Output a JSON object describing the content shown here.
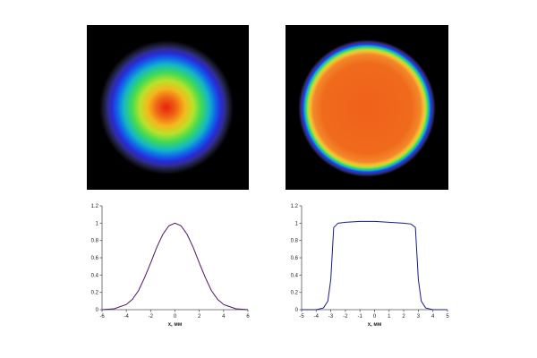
{
  "beam_images": {
    "left": {
      "description_name": "gaussian-beam-profile"
    },
    "right": {
      "description_name": "flat-top-beam-profile"
    }
  },
  "colors": {
    "profile_line": "#1a1a8c",
    "fit_line": "#c01818",
    "axis": "#555555"
  },
  "chart_data": [
    {
      "type": "line",
      "title": "",
      "xlabel": "x, мм",
      "ylabel": "",
      "xlim": [
        -6,
        6
      ],
      "ylim": [
        0,
        1.2
      ],
      "xticks": [
        "-6",
        "-4",
        "-2",
        "0",
        "2",
        "4",
        "6"
      ],
      "yticks": [
        "0",
        "0.2",
        "0.4",
        "0.6",
        "0.8",
        "1",
        "1.2"
      ],
      "series": [
        {
          "x": [
            -6,
            -5,
            -4,
            -3.5,
            -3,
            -2.5,
            -2,
            -1.5,
            -1,
            -0.5,
            0,
            0.5,
            1,
            1.5,
            2,
            2.5,
            3,
            3.5,
            4,
            5,
            6
          ],
          "y": [
            0,
            0.01,
            0.06,
            0.12,
            0.22,
            0.37,
            0.54,
            0.72,
            0.87,
            0.97,
            1.0,
            0.97,
            0.87,
            0.72,
            0.54,
            0.37,
            0.22,
            0.12,
            0.06,
            0.01,
            0
          ]
        },
        {
          "x": [
            -6,
            -5,
            -4,
            -3.5,
            -3,
            -2.5,
            -2,
            -1.5,
            -1,
            -0.5,
            0,
            0.5,
            1,
            1.5,
            2,
            2.5,
            3,
            3.5,
            4,
            5,
            6
          ],
          "y": [
            0,
            0.01,
            0.06,
            0.12,
            0.22,
            0.37,
            0.54,
            0.72,
            0.87,
            0.97,
            1.0,
            0.97,
            0.87,
            0.72,
            0.54,
            0.37,
            0.22,
            0.12,
            0.06,
            0.01,
            0
          ]
        }
      ]
    },
    {
      "type": "line",
      "title": "",
      "xlabel": "x, мм",
      "ylabel": "",
      "xlim": [
        -5,
        5
      ],
      "ylim": [
        0,
        1.2
      ],
      "xticks": [
        "-5",
        "-4",
        "-3",
        "-2",
        "-1",
        "0",
        "1",
        "2",
        "3",
        "4",
        "5"
      ],
      "yticks": [
        "0",
        "0.2",
        "0.4",
        "0.6",
        "0.8",
        "1",
        "1.2"
      ],
      "series": [
        {
          "x": [
            -5,
            -4,
            -3.5,
            -3.2,
            -3,
            -2.9,
            -2.8,
            -2.5,
            -2,
            -1,
            0,
            1,
            2,
            2.5,
            2.8,
            2.9,
            3,
            3.2,
            3.5,
            4,
            5
          ],
          "y": [
            0,
            0.0,
            0.02,
            0.1,
            0.35,
            0.65,
            0.95,
            1.0,
            1.01,
            1.02,
            1.02,
            1.01,
            1.0,
            0.99,
            0.95,
            0.65,
            0.35,
            0.1,
            0.02,
            0.0,
            0
          ]
        }
      ]
    }
  ]
}
